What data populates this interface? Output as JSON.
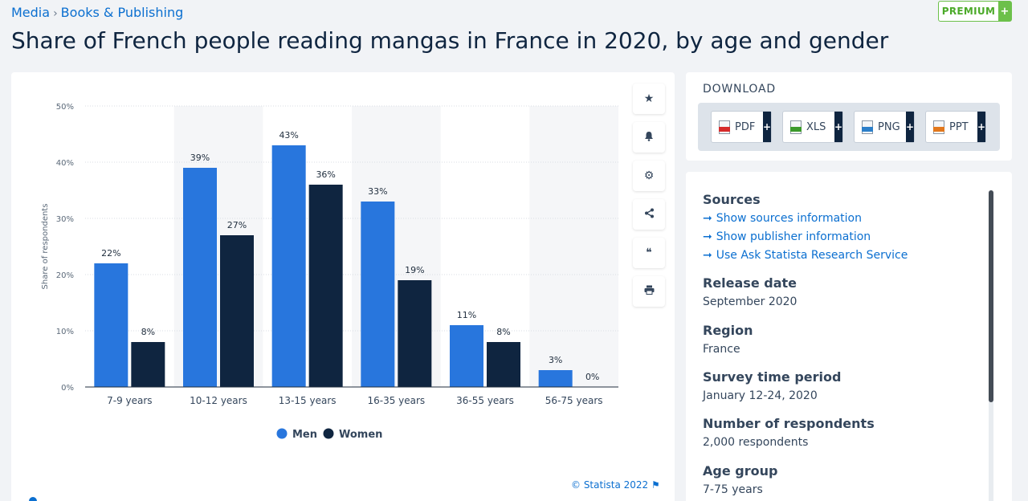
{
  "breadcrumb": {
    "parent": "Media",
    "separator": "›",
    "current": "Books & Publishing"
  },
  "premium": {
    "label": "PREMIUM",
    "plus": "+"
  },
  "page_title": "Share of French people reading mangas in France in 2020, by age and gender",
  "toolbar": {
    "icons": [
      "star-icon",
      "bell-icon",
      "gear-icon",
      "share-icon",
      "quote-icon",
      "print-icon"
    ],
    "glyphs": [
      "★",
      "🔔",
      "⚙",
      "⋖",
      "❝",
      "⎙"
    ]
  },
  "download": {
    "label": "DOWNLOAD",
    "buttons": [
      {
        "label": "PDF",
        "color": "#d62b2b"
      },
      {
        "label": "XLS",
        "color": "#3c9a2c"
      },
      {
        "label": "PNG",
        "color": "#2c7fc9"
      },
      {
        "label": "PPT",
        "color": "#e2781d"
      }
    ],
    "plus": "+"
  },
  "info": {
    "sources_title": "Sources",
    "links": [
      "Show sources information",
      "Show publisher information",
      "Use Ask Statista Research Service"
    ],
    "arrow": "➞",
    "release_title": "Release date",
    "release_value": "September 2020",
    "region_title": "Region",
    "region_value": "France",
    "survey_title": "Survey time period",
    "survey_value": "January 12-24, 2020",
    "respondents_title": "Number of respondents",
    "respondents_value": "2,000 respondents",
    "age_title": "Age group",
    "age_value": "7-75 years"
  },
  "copyright": "© Statista 2022",
  "colors": {
    "men": "#2876dd",
    "women": "#0f2540",
    "accent": "#0b6fd0"
  },
  "chart_data": {
    "type": "bar",
    "title": "Share of French people reading mangas in France in 2020, by age and gender",
    "xlabel": "",
    "ylabel": "Share of respondents",
    "ylim": [
      0,
      50
    ],
    "yticks": [
      0,
      10,
      20,
      30,
      40,
      50
    ],
    "ytick_labels": [
      "0%",
      "10%",
      "20%",
      "30%",
      "40%",
      "50%"
    ],
    "categories": [
      "7-9 years",
      "10-12 years",
      "13-15 years",
      "16-35 years",
      "36-55 years",
      "56-75 years"
    ],
    "series": [
      {
        "name": "Men",
        "values": [
          22,
          39,
          43,
          33,
          11,
          3
        ]
      },
      {
        "name": "Women",
        "values": [
          8,
          27,
          36,
          19,
          8,
          0
        ]
      }
    ],
    "value_suffix": "%",
    "legend_position": "bottom-center",
    "grid": true
  }
}
